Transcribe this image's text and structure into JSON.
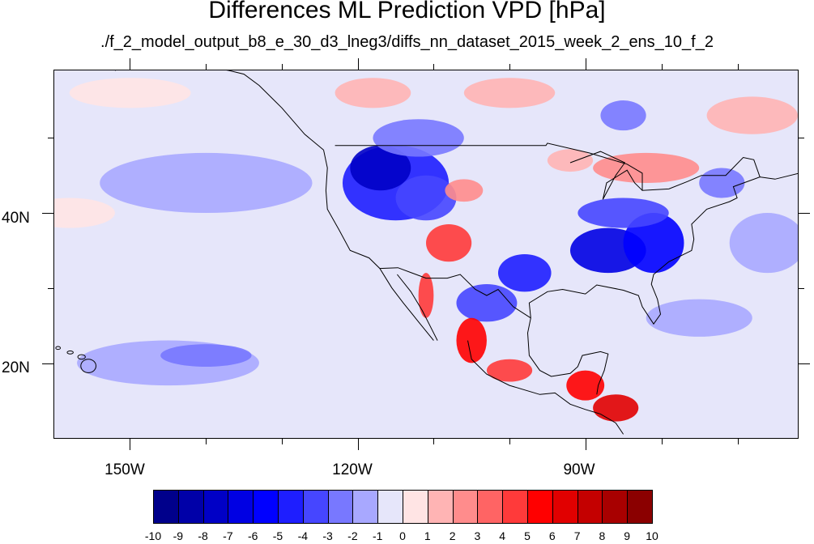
{
  "title": "Differences ML Prediction VPD [hPa]",
  "subtitle": "./f_2_model_output_b8_e_30_d3_lneg3/diffs_nn_dataset_2015_week_2_ens_10_f_2",
  "lat_labels": [
    "40N",
    "20N"
  ],
  "lon_labels": [
    "150W",
    "120W",
    "90W"
  ],
  "colorbar": {
    "labels": [
      "-10",
      "-9",
      "-8",
      "-7",
      "-6",
      "-5",
      "-4",
      "-3",
      "-2",
      "-1",
      "0",
      "1",
      "2",
      "3",
      "4",
      "5",
      "6",
      "7",
      "8",
      "9",
      "10"
    ],
    "colors": [
      "#00008b",
      "#0000a8",
      "#0000c6",
      "#0000e3",
      "#0000ff",
      "#1e1eff",
      "#4646ff",
      "#7878ff",
      "#a8a8ff",
      "#e6e6fa",
      "#ffe4e4",
      "#ffb4b4",
      "#ff8c8c",
      "#ff6464",
      "#ff3a3a",
      "#ff0000",
      "#e10000",
      "#c40000",
      "#a80000",
      "#8b0000"
    ]
  },
  "map": {
    "extent": {
      "lon_min": -160,
      "lon_max": -62,
      "lat_min": 10,
      "lat_max": 59
    },
    "blobs": [
      {
        "lon": -115,
        "lat": 44,
        "rlon": 7,
        "rlat": 5,
        "color": "#1e1eff"
      },
      {
        "lon": -117,
        "lat": 46,
        "rlon": 4,
        "rlat": 3,
        "color": "#0000c6"
      },
      {
        "lon": -111,
        "lat": 42,
        "rlon": 4,
        "rlat": 3,
        "color": "#4646ff"
      },
      {
        "lon": -112,
        "lat": 50,
        "rlon": 6,
        "rlat": 2.5,
        "color": "#7878ff"
      },
      {
        "lon": -108,
        "lat": 36,
        "rlon": 3,
        "rlat": 2.5,
        "color": "#ff3a3a"
      },
      {
        "lon": -106,
        "lat": 43,
        "rlon": 2.5,
        "rlat": 1.5,
        "color": "#ff8c8c"
      },
      {
        "lon": -98,
        "lat": 32,
        "rlon": 3.5,
        "rlat": 2.5,
        "color": "#1e1eff"
      },
      {
        "lon": -103,
        "lat": 28,
        "rlon": 4,
        "rlat": 2.5,
        "color": "#4646ff"
      },
      {
        "lon": -87,
        "lat": 35,
        "rlon": 5,
        "rlat": 3,
        "color": "#0000e3"
      },
      {
        "lon": -81,
        "lat": 36,
        "rlon": 4,
        "rlat": 4,
        "color": "#0000ff"
      },
      {
        "lon": -85,
        "lat": 40,
        "rlon": 6,
        "rlat": 2,
        "color": "#4646ff"
      },
      {
        "lon": -82,
        "lat": 46,
        "rlon": 7,
        "rlat": 2,
        "color": "#ff8c8c"
      },
      {
        "lon": -92,
        "lat": 47,
        "rlon": 3,
        "rlat": 1.5,
        "color": "#ffb4b4"
      },
      {
        "lon": -100,
        "lat": 56,
        "rlon": 6,
        "rlat": 2,
        "color": "#ffb4b4"
      },
      {
        "lon": -85,
        "lat": 53,
        "rlon": 3,
        "rlat": 2,
        "color": "#7878ff"
      },
      {
        "lon": -72,
        "lat": 44,
        "rlon": 3,
        "rlat": 2,
        "color": "#7878ff"
      },
      {
        "lon": -105,
        "lat": 23,
        "rlon": 2,
        "rlat": 3,
        "color": "#ff0000"
      },
      {
        "lon": -111,
        "lat": 29,
        "rlon": 1,
        "rlat": 3,
        "color": "#ff3a3a"
      },
      {
        "lon": -100,
        "lat": 19,
        "rlon": 3,
        "rlat": 1.5,
        "color": "#ff3a3a"
      },
      {
        "lon": -90,
        "lat": 17,
        "rlon": 2.5,
        "rlat": 2,
        "color": "#ff0000"
      },
      {
        "lon": -86,
        "lat": 14,
        "rlon": 3,
        "rlat": 1.8,
        "color": "#e10000"
      },
      {
        "lon": -145,
        "lat": 20,
        "rlon": 12,
        "rlat": 3,
        "color": "#a8a8ff"
      },
      {
        "lon": -140,
        "lat": 21,
        "rlon": 6,
        "rlat": 1.5,
        "color": "#7878ff"
      },
      {
        "lon": -140,
        "lat": 44,
        "rlon": 14,
        "rlat": 4,
        "color": "#a8a8ff"
      },
      {
        "lon": -158,
        "lat": 40,
        "rlon": 6,
        "rlat": 2,
        "color": "#ffe4e4"
      },
      {
        "lon": -75,
        "lat": 26,
        "rlon": 7,
        "rlat": 2.5,
        "color": "#a8a8ff"
      },
      {
        "lon": -66,
        "lat": 36,
        "rlon": 5,
        "rlat": 4,
        "color": "#a8a8ff"
      },
      {
        "lon": -68,
        "lat": 53,
        "rlon": 6,
        "rlat": 2.5,
        "color": "#ffb4b4"
      },
      {
        "lon": -150,
        "lat": 56,
        "rlon": 8,
        "rlat": 2,
        "color": "#ffe4e4"
      },
      {
        "lon": -118,
        "lat": 56,
        "rlon": 5,
        "rlat": 2,
        "color": "#ffb4b4"
      }
    ]
  }
}
